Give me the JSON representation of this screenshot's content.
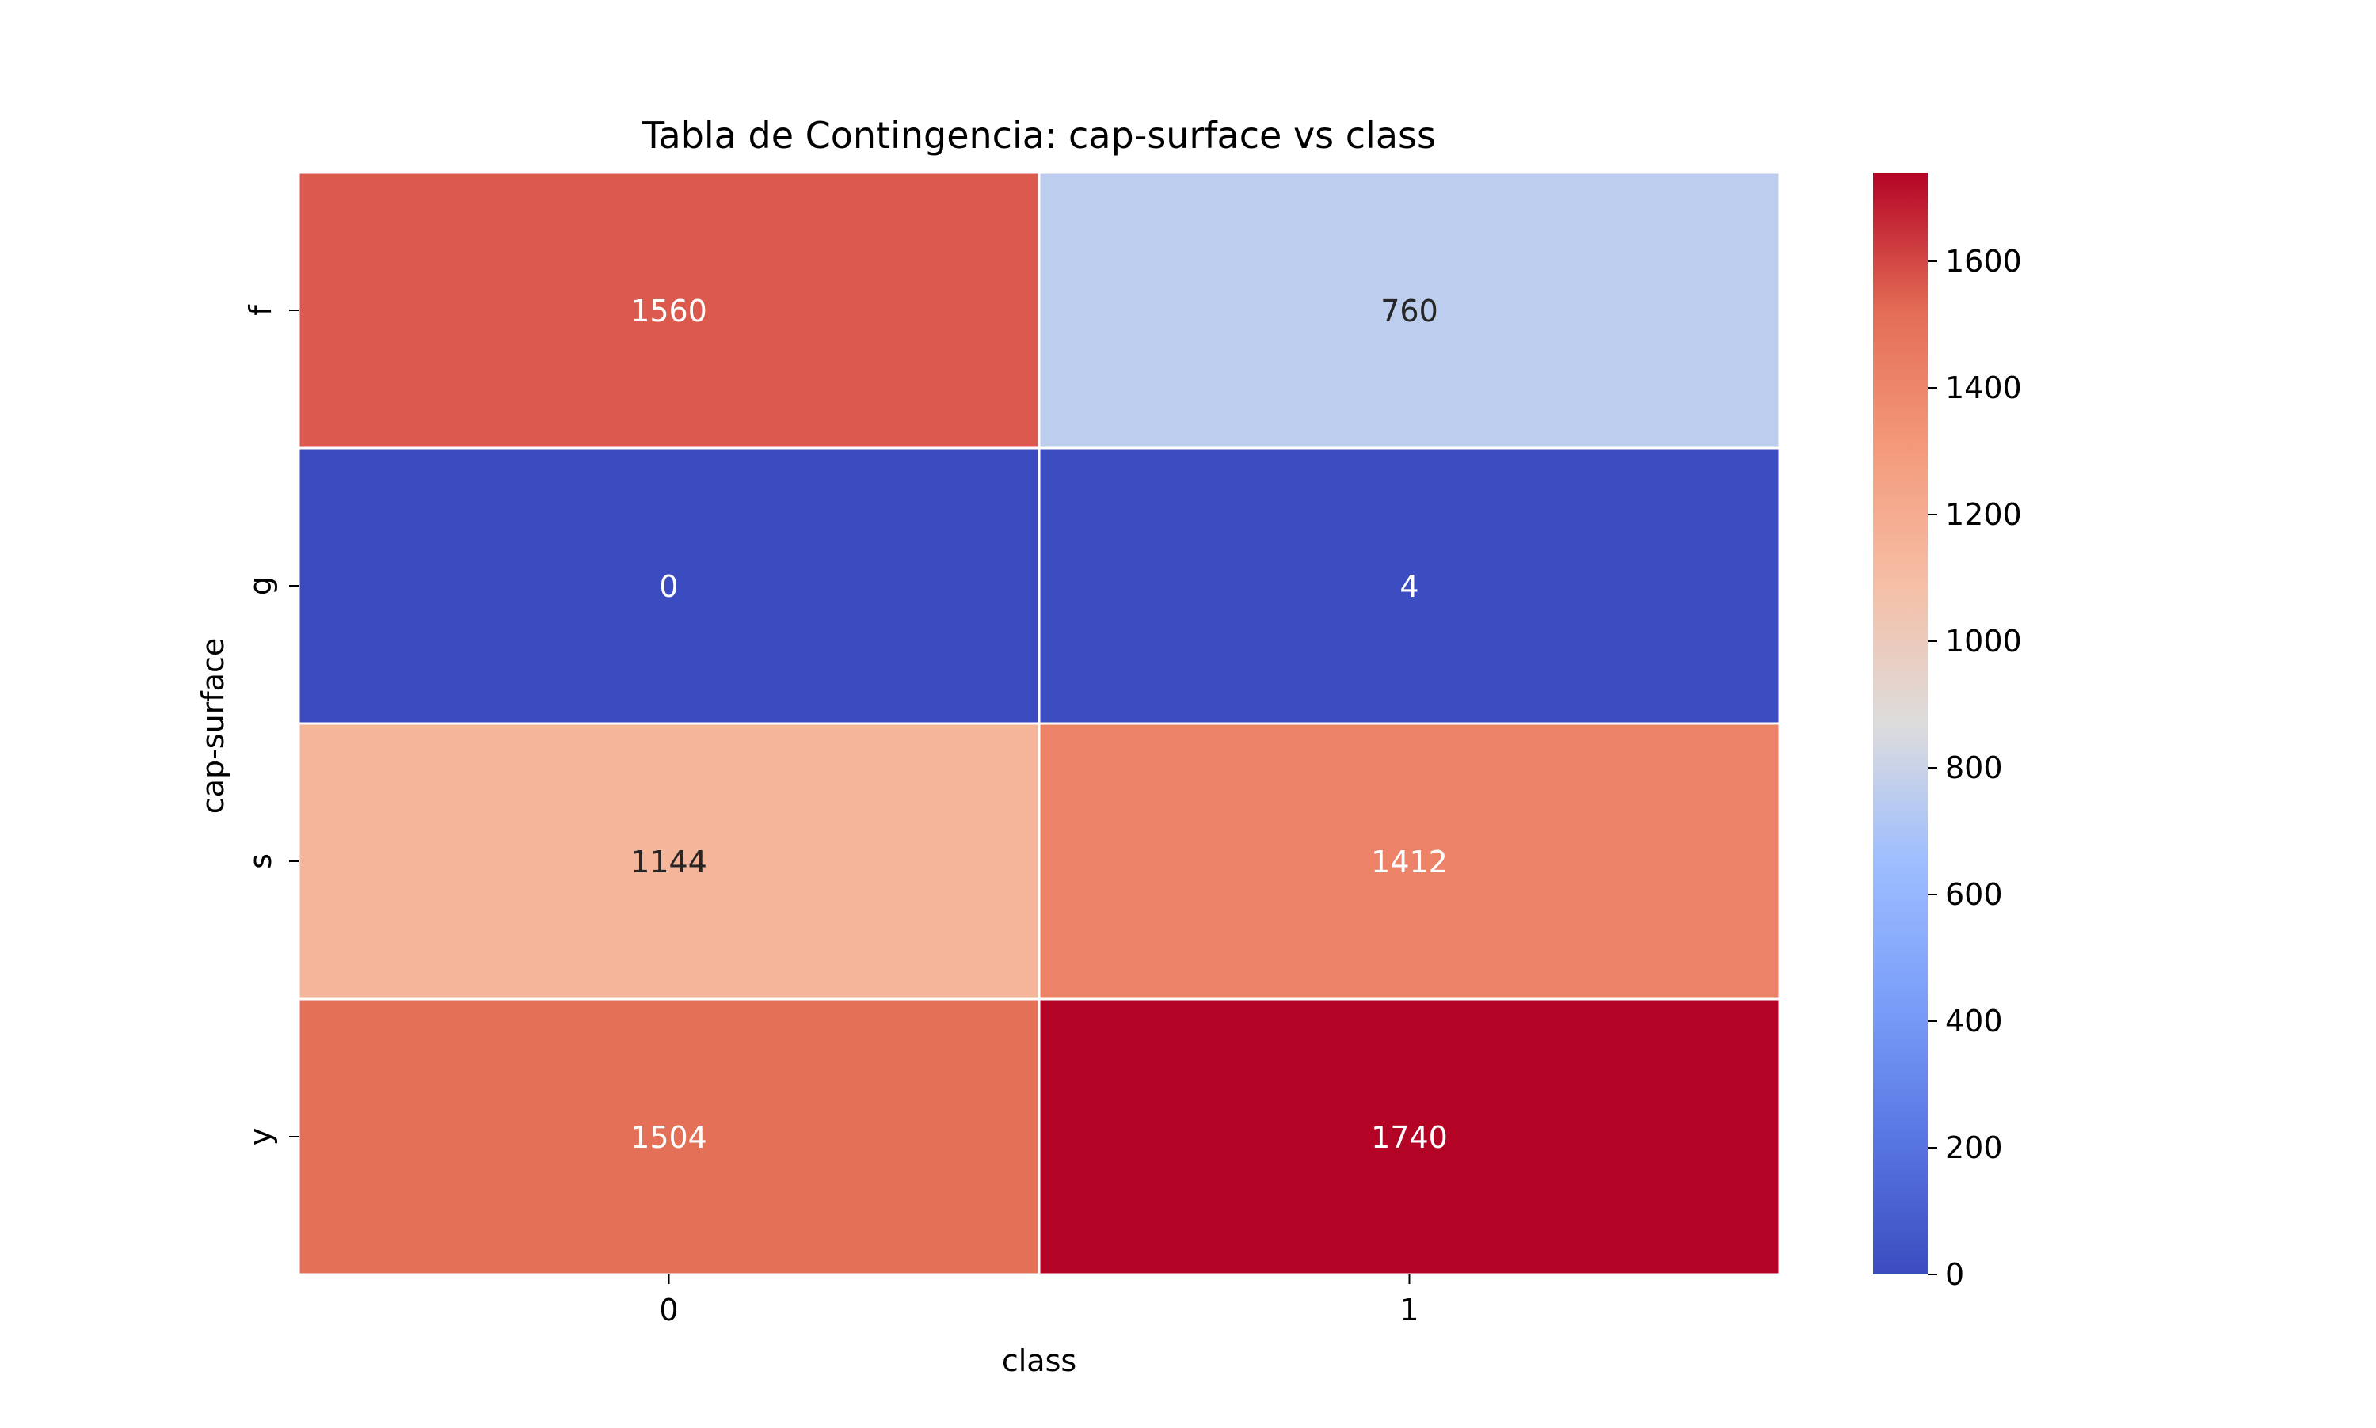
{
  "chart_data": {
    "type": "heatmap",
    "title": "Tabla de Contingencia: cap-surface vs class",
    "xlabel": "class",
    "ylabel": "cap-surface",
    "x_categories": [
      "0",
      "1"
    ],
    "y_categories": [
      "f",
      "g",
      "s",
      "y"
    ],
    "values": [
      [
        1560,
        760
      ],
      [
        0,
        4
      ],
      [
        1144,
        1412
      ],
      [
        1504,
        1740
      ]
    ],
    "colormap": "coolwarm",
    "vmin": 0,
    "vmax": 1740,
    "colorbar_ticks": [
      "0",
      "200",
      "400",
      "600",
      "800",
      "1000",
      "1200",
      "1400",
      "1600"
    ],
    "colorbar_tick_values": [
      0,
      200,
      400,
      600,
      800,
      1000,
      1200,
      1400,
      1600
    ]
  }
}
